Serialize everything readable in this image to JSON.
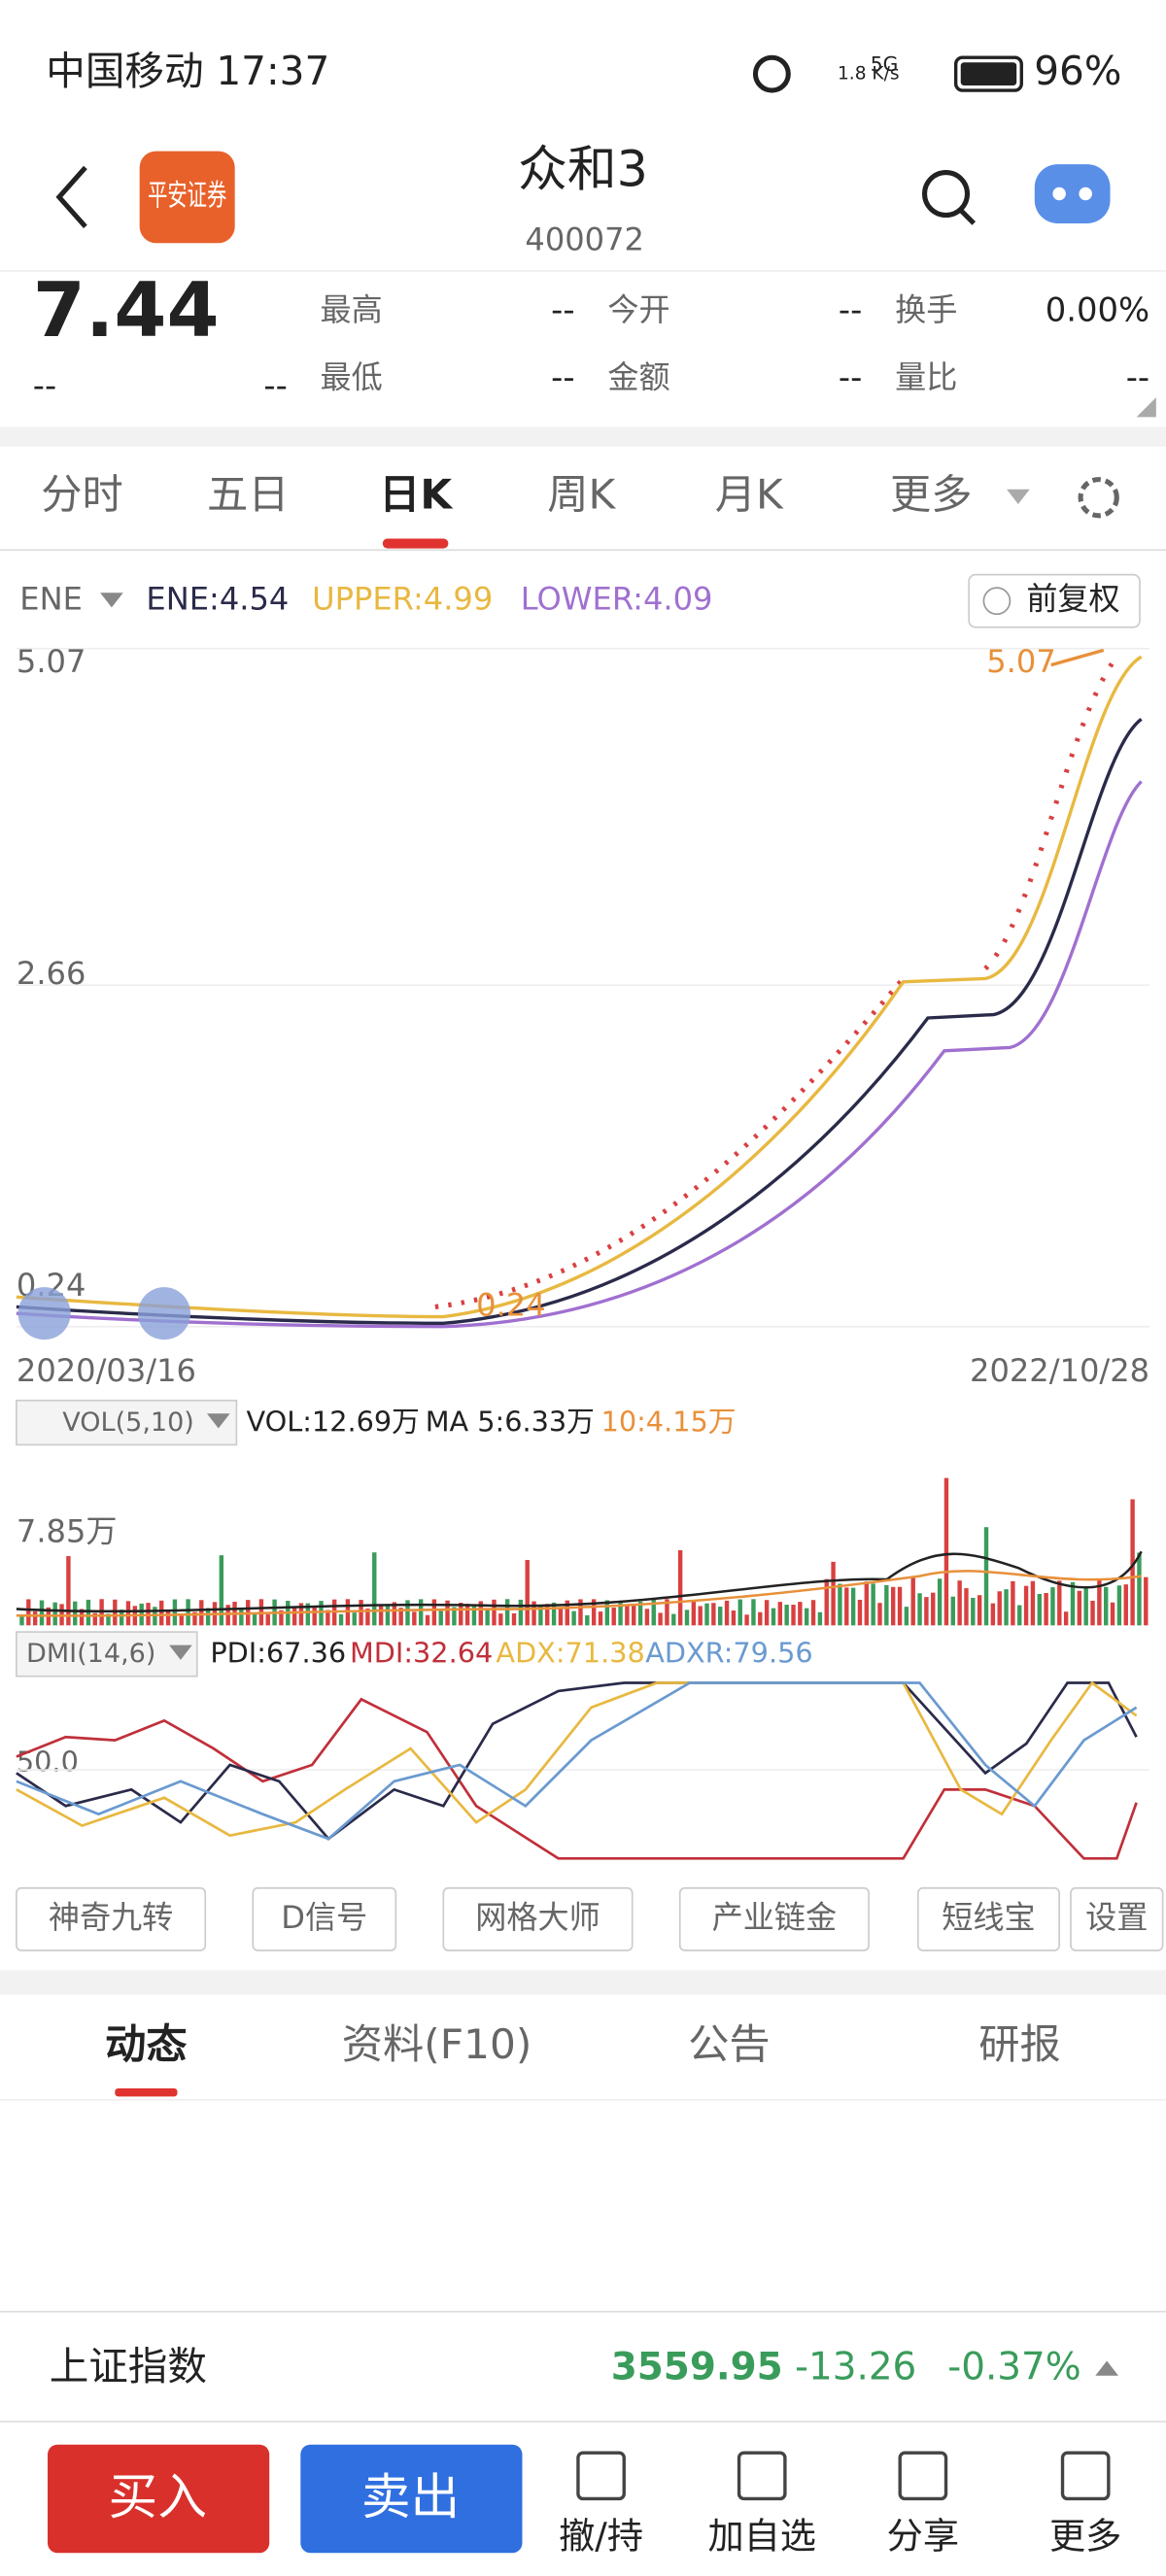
{
  "status": {
    "time": "中国移动 17:37",
    "speed": "1.8 K/s",
    "network": "5G",
    "battery": "96%"
  },
  "header": {
    "broker": "平安证券",
    "title": "众和3",
    "code": "400072"
  },
  "quote": {
    "price": "7.44",
    "change": "--",
    "change_pct": "--",
    "fields": [
      {
        "label": "最高",
        "value": "--"
      },
      {
        "label": "今开",
        "value": "--"
      },
      {
        "label": "换手",
        "value": "0.00%"
      },
      {
        "label": "最低",
        "value": "--"
      },
      {
        "label": "金额",
        "value": "--"
      },
      {
        "label": "量比",
        "value": "--"
      }
    ]
  },
  "tabs": [
    "分时",
    "五日",
    "日K",
    "周K",
    "月K",
    "更多"
  ],
  "ene": {
    "name": "ENE",
    "items": [
      "ENE:4.54",
      "UPPER:4.99",
      "LOWER:4.09"
    ],
    "adjust": "前复权",
    "y_labels": [
      "5.07",
      "2.66",
      "0.24"
    ],
    "max_label": "5.07",
    "min_label": "0.24",
    "start_date": "2020/03/16",
    "end_date": "2022/10/28"
  },
  "vol": {
    "name": "VOL(5,10)",
    "items": [
      "VOL:12.69万",
      "MA 5:6.33万",
      "10:4.15万"
    ],
    "y_label": "7.85万"
  },
  "dmi": {
    "name": "DMI(14,6)",
    "items": [
      "PDI:67.36",
      "MDI:32.64",
      "ADX:71.38",
      "ADXR:79.56"
    ],
    "y_label": "50.0"
  },
  "tools": [
    "神奇九转",
    "D信号",
    "网格大师",
    "产业链金",
    "短线宝",
    "设置"
  ],
  "info_tabs": [
    "动态",
    "资料(F10)",
    "公告",
    "研报"
  ],
  "index": {
    "name": "上证指数",
    "value": "3559.95",
    "change": "-13.26",
    "pct": "-0.37%"
  },
  "actions": {
    "buy": "买入",
    "sell": "卖出",
    "nav": [
      "撤/持",
      "加自选",
      "分享",
      "更多"
    ]
  }
}
